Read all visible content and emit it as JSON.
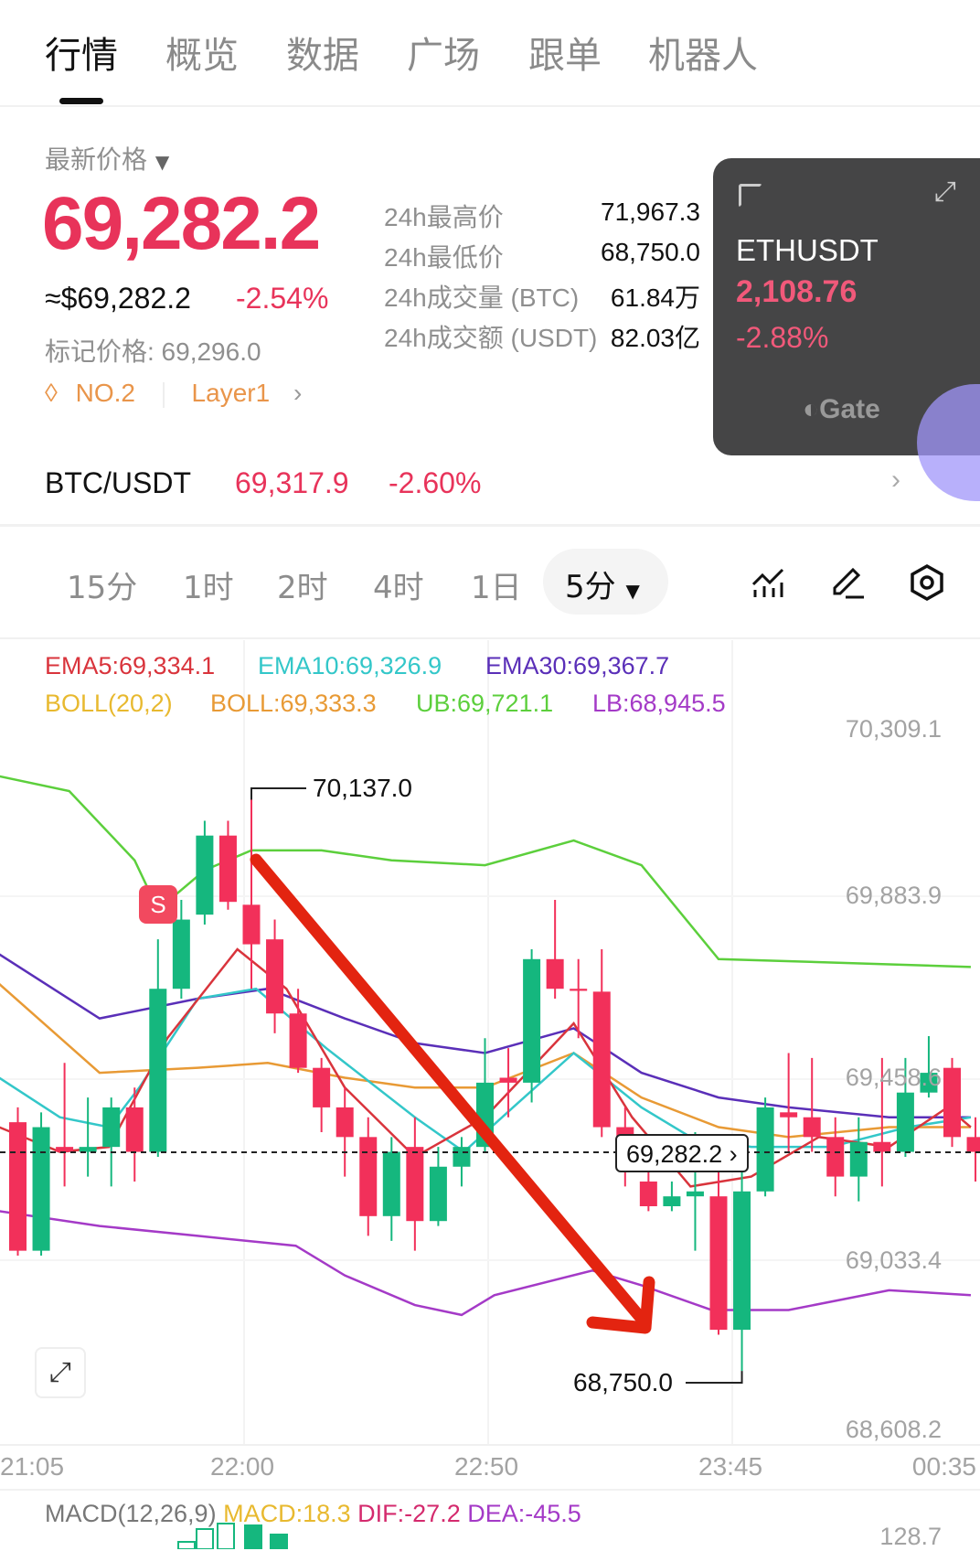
{
  "tabs": [
    {
      "label": "行情"
    },
    {
      "label": "概览"
    },
    {
      "label": "数据"
    },
    {
      "label": "广场"
    },
    {
      "label": "跟单"
    },
    {
      "label": "机器人"
    }
  ],
  "price": {
    "label": "最新价格",
    "last": "69,282.2",
    "usd": "≈$69,282.2",
    "change": "-2.54%",
    "mark": "标记价格: 69,296.0",
    "rank": "NO.2",
    "sector": "Layer1"
  },
  "stats": [
    {
      "label": "24h最高价",
      "value": "71,967.3"
    },
    {
      "label": "24h最低价",
      "value": "68,750.0"
    },
    {
      "label": "24h成交量 (BTC)",
      "value": "61.84万"
    },
    {
      "label": "24h成交额 (USDT)",
      "value": "82.03亿"
    }
  ],
  "overlay": {
    "symbol": "ETHUSDT",
    "price": "2,108.76",
    "change": "-2.88%",
    "brand": "Gate"
  },
  "pair": {
    "name": "BTC/USDT",
    "price": "69,317.9",
    "change": "-2.60%"
  },
  "timeframes": [
    {
      "label": "15分"
    },
    {
      "label": "1时"
    },
    {
      "label": "2时"
    },
    {
      "label": "4时"
    },
    {
      "label": "1日"
    }
  ],
  "selected_timeframe": "5分",
  "toolbar_icons": [
    "indicator-icon",
    "draw-icon",
    "settings-icon"
  ],
  "legend": {
    "ema5": "EMA5:69,334.1",
    "ema10": "EMA10:69,326.9",
    "ema30": "EMA30:69,367.7",
    "boll": "BOLL(20,2)",
    "boll_mid": "BOLL:69,333.3",
    "ub": "UB:69,721.1",
    "lb": "LB:68,945.5"
  },
  "colors": {
    "up": "#15b77e",
    "down": "#f2305a",
    "ema5": "#d9343c",
    "ema10": "#33c7c9",
    "ema30": "#5a2fb8",
    "boll": "#e89a35",
    "ub": "#5ccf3c",
    "lb": "#a43ac7"
  },
  "chart_data": {
    "type": "candlestick",
    "y_ticks": [
      "70,309.1",
      "69,883.9",
      "69,458.6",
      "69,033.4",
      "68,608.2"
    ],
    "ylim": [
      68608.2,
      70309.1
    ],
    "x_ticks": [
      "21:05",
      "22:00",
      "22:50",
      "23:45",
      "00:35"
    ],
    "current_price": "69,282.2",
    "max_label": "70,137.0",
    "min_label": "68,750.0",
    "candles": [
      [
        69354,
        69390,
        69030,
        69042
      ],
      [
        69042,
        69378,
        69030,
        69342
      ],
      [
        69294,
        69498,
        69198,
        69282
      ],
      [
        69282,
        69414,
        69222,
        69294
      ],
      [
        69294,
        69414,
        69198,
        69390
      ],
      [
        69390,
        69438,
        69210,
        69282
      ],
      [
        69282,
        69798,
        69270,
        69678
      ],
      [
        69678,
        69894,
        69654,
        69846
      ],
      [
        69858,
        70086,
        69834,
        70050
      ],
      [
        70050,
        70086,
        69870,
        69889
      ],
      [
        69882,
        70137,
        69678,
        69786
      ],
      [
        69798,
        69846,
        69570,
        69618
      ],
      [
        69618,
        69678,
        69474,
        69486
      ],
      [
        69486,
        69510,
        69330,
        69390
      ],
      [
        69390,
        69438,
        69222,
        69318
      ],
      [
        69318,
        69366,
        69078,
        69126
      ],
      [
        69126,
        69318,
        69066,
        69282
      ],
      [
        69294,
        69366,
        69042,
        69114
      ],
      [
        69114,
        69294,
        69102,
        69246
      ],
      [
        69246,
        69318,
        69198,
        69294
      ],
      [
        69294,
        69558,
        69282,
        69450
      ],
      [
        69462,
        69534,
        69366,
        69450
      ],
      [
        69450,
        69774,
        69402,
        69750
      ],
      [
        69750,
        69894,
        69654,
        69678
      ],
      [
        69678,
        69750,
        69558,
        69673
      ],
      [
        69671,
        69774,
        69318,
        69342
      ],
      [
        69342,
        69390,
        69198,
        69258
      ],
      [
        69210,
        69270,
        69138,
        69150
      ],
      [
        69150,
        69210,
        69138,
        69174
      ],
      [
        69174,
        69330,
        69042,
        69186
      ],
      [
        69174,
        69294,
        68838,
        68850
      ],
      [
        68850,
        69318,
        68750,
        69186
      ],
      [
        69186,
        69414,
        69174,
        69390
      ],
      [
        69378,
        69522,
        69282,
        69366
      ],
      [
        69366,
        69510,
        69282,
        69318
      ],
      [
        69318,
        69366,
        69174,
        69222
      ],
      [
        69222,
        69366,
        69162,
        69306
      ],
      [
        69306,
        69510,
        69198,
        69282
      ],
      [
        69282,
        69510,
        69270,
        69426
      ],
      [
        69426,
        69563,
        69414,
        69474
      ],
      [
        69486,
        69510,
        69294,
        69318
      ],
      [
        69318,
        69366,
        69210,
        69282
      ]
    ],
    "lines": {
      "ub": [
        [
          -0.8,
          70194
        ],
        [
          2.2,
          70158
        ],
        [
          5,
          69990
        ],
        [
          6,
          69870
        ],
        [
          8,
          69966
        ],
        [
          10,
          70014
        ],
        [
          13,
          70014
        ],
        [
          16,
          69990
        ],
        [
          20,
          69978
        ],
        [
          23.8,
          70038
        ],
        [
          26.7,
          69978
        ],
        [
          30,
          69750
        ],
        [
          37,
          69738
        ],
        [
          40.8,
          69731
        ]
      ],
      "lb": [
        [
          -0.8,
          69138
        ],
        [
          3.5,
          69102
        ],
        [
          7.7,
          69078
        ],
        [
          11.9,
          69054
        ],
        [
          14,
          68982
        ],
        [
          17,
          68910
        ],
        [
          19,
          68886
        ],
        [
          20.4,
          68934
        ],
        [
          24.6,
          68994
        ],
        [
          26.7,
          68958
        ],
        [
          29.7,
          68898
        ],
        [
          33,
          68898
        ],
        [
          37.3,
          68946
        ],
        [
          40.8,
          68934
        ]
      ],
      "boll": [
        [
          -0.8,
          69690
        ],
        [
          3.5,
          69474
        ],
        [
          7.7,
          69486
        ],
        [
          10.7,
          69498
        ],
        [
          14,
          69462
        ],
        [
          17,
          69438
        ],
        [
          20,
          69438
        ],
        [
          23.8,
          69522
        ],
        [
          26.7,
          69414
        ],
        [
          30,
          69342
        ],
        [
          33,
          69318
        ],
        [
          37.3,
          69342
        ],
        [
          40.8,
          69342
        ]
      ],
      "ema30": [
        [
          -0.8,
          69762
        ],
        [
          3.5,
          69606
        ],
        [
          7.7,
          69654
        ],
        [
          10.7,
          69678
        ],
        [
          14,
          69606
        ],
        [
          17,
          69546
        ],
        [
          20,
          69522
        ],
        [
          23.8,
          69582
        ],
        [
          26.7,
          69474
        ],
        [
          30,
          69414
        ],
        [
          33,
          69390
        ],
        [
          37.3,
          69366
        ],
        [
          40.8,
          69366
        ]
      ],
      "ema10": [
        [
          -0.8,
          69462
        ],
        [
          1.8,
          69366
        ],
        [
          3.9,
          69342
        ],
        [
          5.2,
          69438
        ],
        [
          7.7,
          69654
        ],
        [
          10.2,
          69678
        ],
        [
          13.2,
          69534
        ],
        [
          17,
          69366
        ],
        [
          19.1,
          69282
        ],
        [
          21.2,
          69390
        ],
        [
          23.8,
          69522
        ],
        [
          26.7,
          69390
        ],
        [
          28.8,
          69318
        ],
        [
          31.4,
          69294
        ],
        [
          34.8,
          69294
        ],
        [
          38.1,
          69342
        ],
        [
          40.8,
          69366
        ]
      ],
      "ema5": [
        [
          -0.8,
          69342
        ],
        [
          1.8,
          69282
        ],
        [
          3.9,
          69294
        ],
        [
          6.4,
          69558
        ],
        [
          9.4,
          69774
        ],
        [
          11.5,
          69678
        ],
        [
          14,
          69438
        ],
        [
          17,
          69270
        ],
        [
          20,
          69366
        ],
        [
          23.8,
          69594
        ],
        [
          26.3,
          69366
        ],
        [
          28.8,
          69198
        ],
        [
          31.4,
          69222
        ],
        [
          34.3,
          69318
        ],
        [
          37.3,
          69294
        ],
        [
          39.8,
          69390
        ],
        [
          40.8,
          69342
        ]
      ]
    }
  },
  "macd": {
    "title": "MACD(12,26,9)",
    "macd": "MACD:18.3",
    "dif": "DIF:-27.2",
    "dea": "DEA:-45.5",
    "tick": "128.7"
  }
}
